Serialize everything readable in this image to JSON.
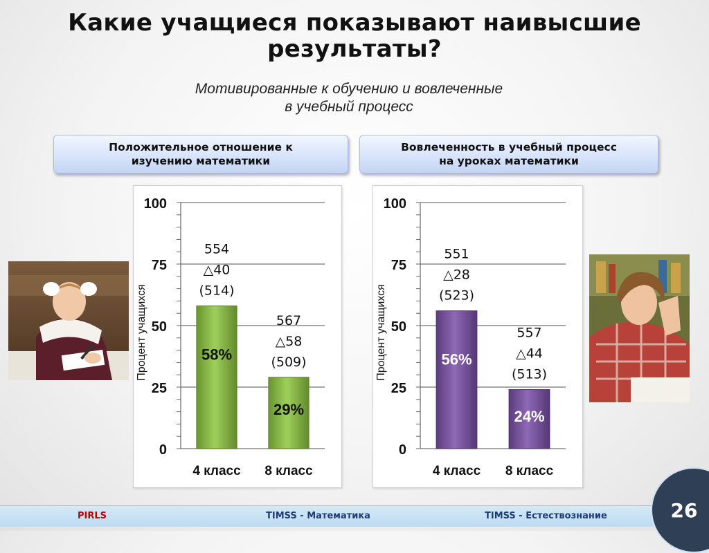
{
  "title": {
    "line1": "Какие учащиеся показывают наивысшие",
    "line2": "результаты?"
  },
  "subtitle": {
    "line1": "Мотивированные к обучению и вовлеченные",
    "line2": "в учебный процесс"
  },
  "headers": {
    "left": {
      "line1": "Положительное отношение к",
      "line2": "изучению математики"
    },
    "right": {
      "line1": "Вовлеченность в учебный процесс",
      "line2": "на уроках математики"
    }
  },
  "colors": {
    "green_bar": "#8dc63f",
    "purple_bar": "#7b4ea8",
    "header_fill": "#d6e3fb",
    "pirls": "#c00000",
    "timss": "#1f3b73",
    "footer": "#bcdcf2",
    "pagenum_bg": "#2f3f55"
  },
  "chart_data": [
    {
      "type": "bar",
      "categories": [
        "4 класс",
        "8 класс"
      ],
      "values": [
        58,
        29
      ],
      "value_labels": [
        "58%",
        "29%"
      ],
      "annotations": [
        {
          "score": "554",
          "delta": "△40",
          "prev": "(514)"
        },
        {
          "score": "567",
          "delta": "△58",
          "prev": "(509)"
        }
      ],
      "ylabel": "Процент учащихся",
      "ylim": [
        0,
        100
      ],
      "yticks": [
        0,
        25,
        50,
        75,
        100
      ],
      "grid": true,
      "color": "#8dc63f"
    },
    {
      "type": "bar",
      "categories": [
        "4 класс",
        "8 класс"
      ],
      "values": [
        56,
        24
      ],
      "value_labels": [
        "56%",
        "24%"
      ],
      "annotations": [
        {
          "score": "551",
          "delta": "△28",
          "prev": "(523)"
        },
        {
          "score": "557",
          "delta": "△44",
          "prev": "(513)"
        }
      ],
      "ylabel": "Процент учащихся",
      "ylim": [
        0,
        100
      ],
      "yticks": [
        0,
        25,
        50,
        75,
        100
      ],
      "grid": true,
      "color": "#7b4ea8"
    }
  ],
  "photos": {
    "left": "girl-student-photo",
    "right": "boy-student-photo"
  },
  "footer": {
    "pirls": "PIRLS",
    "timss_math": "TIMSS - Математика",
    "timss_science": "TIMSS - Естествознание"
  },
  "page_number": "26"
}
